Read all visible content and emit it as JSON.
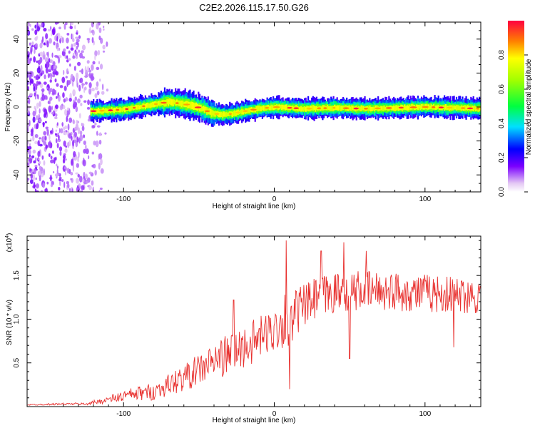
{
  "chart_data": [
    {
      "type": "heatmap",
      "title": "C2E2.2026.115.17.50.G26",
      "xlabel": "Height of straight line (km)",
      "ylabel": "Frequency (Hz)",
      "xlim": [
        -164,
        137
      ],
      "ylim": [
        -50,
        50
      ],
      "xticks": [
        -100,
        0,
        100
      ],
      "xtick_labels": [
        "-100",
        "0",
        "100"
      ],
      "yticks": [
        -40,
        -20,
        0,
        20,
        40
      ],
      "ytick_labels": [
        "-40",
        "-20",
        "0",
        "20",
        "40"
      ],
      "noise_region_x": [
        -164,
        -110
      ],
      "signal_start_x": -122,
      "signal_ridge": {
        "x": [
          -122,
          -110,
          -100,
          -90,
          -80,
          -70,
          -62,
          -55,
          -48,
          -42,
          -35,
          -28,
          -20,
          -10,
          0,
          10,
          20,
          40,
          60,
          80,
          100,
          120,
          137
        ],
        "freq": [
          -2.5,
          -2,
          -1.5,
          0,
          1.5,
          3,
          2,
          1,
          -1,
          -3.5,
          -4.5,
          -4,
          -2.5,
          -1,
          0,
          -0.5,
          -1,
          -0.5,
          -1,
          -0.5,
          0,
          -0.5,
          -1
        ]
      },
      "colorbar": {
        "label": "Normalized spectral amplitude",
        "range": [
          0,
          1
        ],
        "ticks": [
          0.0,
          0.2,
          0.4,
          0.6,
          0.8
        ],
        "tick_labels": [
          "0.0",
          "0.2",
          "0.4",
          "0.6",
          "0.8"
        ]
      },
      "colors": {
        "background": "#ffffff",
        "axis": "#000000"
      }
    },
    {
      "type": "line",
      "xlabel": "Height of straight line (km)",
      "ylabel": "SNR (10 * v/v)",
      "scale_note": "(x10",
      "scale_exp": "4",
      "xlim": [
        -164,
        137
      ],
      "ylim": [
        0,
        1.95
      ],
      "xticks": [
        -100,
        0,
        100
      ],
      "xtick_labels": [
        "-100",
        "0",
        "100"
      ],
      "yticks": [
        0.5,
        1.0,
        1.5
      ],
      "ytick_labels": [
        "0.5",
        "1.0",
        "1.5"
      ],
      "series": [
        {
          "name": "SNR",
          "color": "#e8302e",
          "x": [
            -164,
            -140,
            -125,
            -110,
            -100,
            -90,
            -80,
            -70,
            -60,
            -50,
            -40,
            -30,
            -20,
            -10,
            0,
            5,
            8,
            10,
            15,
            20,
            30,
            40,
            50,
            60,
            80,
            100,
            120,
            137
          ],
          "trend": [
            0.02,
            0.03,
            0.03,
            0.08,
            0.12,
            0.15,
            0.17,
            0.25,
            0.33,
            0.42,
            0.52,
            0.6,
            0.68,
            0.78,
            0.88,
            0.95,
            1.0,
            0.85,
            1.1,
            1.15,
            1.25,
            1.3,
            1.32,
            1.33,
            1.32,
            1.3,
            1.28,
            1.27
          ],
          "noise": [
            0.005,
            0.008,
            0.01,
            0.03,
            0.05,
            0.06,
            0.07,
            0.09,
            0.11,
            0.13,
            0.15,
            0.17,
            0.18,
            0.18,
            0.18,
            0.2,
            0.3,
            0.22,
            0.2,
            0.18,
            0.18,
            0.17,
            0.17,
            0.16,
            0.16,
            0.16,
            0.15,
            0.15
          ],
          "peaks": [
            {
              "x": -27,
              "y": 1.22
            },
            {
              "x": 8,
              "y": 1.9
            },
            {
              "x": 46,
              "y": 1.88
            },
            {
              "x": 31,
              "y": 1.78
            },
            {
              "x": 61,
              "y": 1.78
            },
            {
              "x": 10,
              "y": 0.2
            },
            {
              "x": 50,
              "y": 0.55
            },
            {
              "x": 119,
              "y": 0.68
            }
          ]
        }
      ],
      "colors": {
        "background": "#ffffff",
        "axis": "#000000"
      }
    }
  ]
}
